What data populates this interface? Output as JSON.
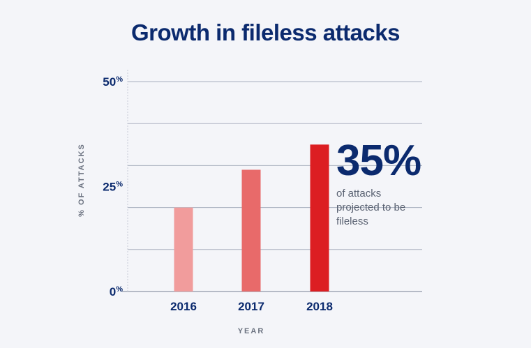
{
  "title": "Growth in fileless attacks",
  "callout": {
    "value": "35%",
    "text": "of attacks projected to be fileless"
  },
  "chart_data": {
    "type": "bar",
    "title": "Growth in fileless attacks",
    "xlabel": "YEAR",
    "ylabel": "% OF ATTACKS",
    "categories": [
      "2016",
      "2017",
      "2018"
    ],
    "values": [
      20,
      29,
      35
    ],
    "colors": [
      "#f19c9c",
      "#e86a6a",
      "#dc1e22"
    ],
    "ylim": [
      0,
      50
    ],
    "yticks": [
      {
        "value": 0,
        "label": "0"
      },
      {
        "value": 25,
        "label": "25"
      },
      {
        "value": 50,
        "label": "50"
      }
    ],
    "ytick_suffix": "%",
    "gridlines": [
      10,
      20,
      30,
      40,
      50
    ],
    "grid": true,
    "legend": "none"
  }
}
